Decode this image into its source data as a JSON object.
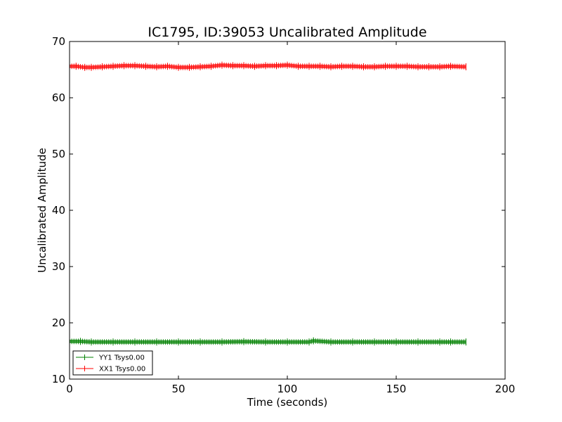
{
  "chart_data": {
    "type": "line",
    "title": "IC1795, ID:39053 Uncalibrated Amplitude",
    "xlabel": "Time (seconds)",
    "ylabel": "Uncalibrated Amplitude",
    "xlim": [
      0,
      200
    ],
    "ylim": [
      10,
      70
    ],
    "xticks": [
      0,
      50,
      100,
      150,
      200
    ],
    "yticks": [
      10,
      20,
      30,
      40,
      50,
      60,
      70
    ],
    "xtick_labels": [
      "0",
      "50",
      "100",
      "150",
      "200"
    ],
    "ytick_labels": [
      "10",
      "20",
      "30",
      "40",
      "50",
      "60",
      "70"
    ],
    "grid": false,
    "legend_position": "lower-left",
    "series": [
      {
        "name": "YY1 Tsys0.00",
        "color": "#008000",
        "x": [
          0,
          5,
          10,
          20,
          30,
          40,
          50,
          60,
          70,
          80,
          90,
          100,
          110,
          112,
          120,
          130,
          140,
          150,
          160,
          170,
          175,
          182
        ],
        "y": [
          16.7,
          16.7,
          16.6,
          16.6,
          16.6,
          16.6,
          16.6,
          16.6,
          16.6,
          16.65,
          16.6,
          16.6,
          16.6,
          16.8,
          16.6,
          16.6,
          16.6,
          16.6,
          16.6,
          16.6,
          16.6,
          16.6
        ]
      },
      {
        "name": "XX1 Tsys0.00",
        "color": "#ff0000",
        "x": [
          0,
          3,
          7,
          10,
          15,
          20,
          25,
          30,
          35,
          40,
          45,
          50,
          55,
          60,
          65,
          70,
          75,
          80,
          85,
          90,
          95,
          100,
          105,
          110,
          115,
          120,
          125,
          130,
          135,
          140,
          145,
          150,
          155,
          160,
          165,
          170,
          175,
          182
        ],
        "y": [
          65.6,
          65.6,
          65.4,
          65.4,
          65.5,
          65.6,
          65.7,
          65.7,
          65.6,
          65.5,
          65.6,
          65.4,
          65.4,
          65.5,
          65.6,
          65.8,
          65.7,
          65.7,
          65.6,
          65.7,
          65.7,
          65.8,
          65.6,
          65.6,
          65.6,
          65.5,
          65.6,
          65.6,
          65.5,
          65.5,
          65.6,
          65.6,
          65.6,
          65.5,
          65.5,
          65.5,
          65.6,
          65.5
        ]
      }
    ]
  }
}
